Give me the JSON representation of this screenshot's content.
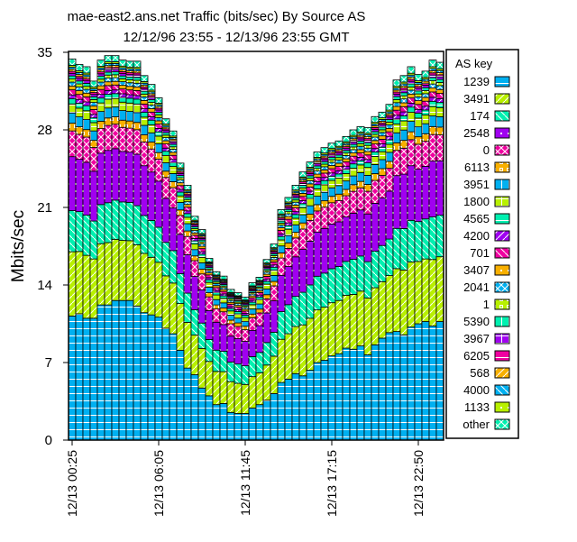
{
  "chart_data": {
    "type": "bar",
    "stacked": true,
    "title": "mae-east2.ans.net Traffic (bits/sec) By Source AS",
    "subtitle": "12/12/96 23:55 - 12/13/96 23:55 GMT",
    "xlabel": "",
    "ylabel": "Mbits/sec",
    "ylim": [
      0,
      35
    ],
    "yticks": [
      "0",
      "7",
      "14",
      "21",
      "28",
      "35"
    ],
    "xtick_labels": [
      {
        "bar": 0,
        "label": "12/13 00:25"
      },
      {
        "bar": 12,
        "label": "12/13 06:05"
      },
      {
        "bar": 24,
        "label": "12/13 11:45"
      },
      {
        "bar": 36,
        "label": "12/13 17:15"
      },
      {
        "bar": 48,
        "label": "12/13 22:50"
      }
    ],
    "legend_title": "AS key",
    "legend_position": "right",
    "totals": [
      34.4,
      33.9,
      33.7,
      32.4,
      34.3,
      34.7,
      34.7,
      34.3,
      34.2,
      34.2,
      32.9,
      32.1,
      30.9,
      29,
      27.9,
      25,
      23,
      20.2,
      19,
      16.4,
      15.2,
      14.8,
      13.6,
      13.3,
      12.9,
      14.2,
      14.7,
      16.3,
      17.7,
      20.8,
      21.9,
      23,
      24.2,
      25.1,
      26,
      26.4,
      26.8,
      27,
      27.4,
      28,
      28.3,
      28.2,
      29.2,
      29.6,
      30.3,
      32.5,
      32.9,
      33.7,
      33,
      33.3,
      34.3,
      34.1
    ],
    "series": [
      {
        "name": "1239",
        "color": "#00b0f0",
        "pattern": "hlines",
        "values": [
          11.2,
          11.4,
          11,
          11,
          12.2,
          12.2,
          12.6,
          12.6,
          12.6,
          12.1,
          11.5,
          11.3,
          11.1,
          10.1,
          9.6,
          8.1,
          6.5,
          5.9,
          4.7,
          4,
          3.2,
          3.3,
          2.5,
          2.4,
          2.4,
          2.9,
          3.2,
          3.6,
          4.2,
          5.2,
          5.5,
          6,
          5.8,
          6.3,
          7,
          7.2,
          7.6,
          7.8,
          8.3,
          8.2,
          8.5,
          7.7,
          8.6,
          9.2,
          9.7,
          9.8,
          9.5,
          10.2,
          10.5,
          10.7,
          10.3,
          10.7
        ]
      },
      {
        "name": "3491",
        "color": "#b8f000",
        "pattern": "diag-up",
        "share": 0.25
      },
      {
        "name": "174",
        "color": "#00f0b0",
        "pattern": "diag-down",
        "share": 0.16
      },
      {
        "name": "2548",
        "color": "#a000f0",
        "pattern": "dots",
        "share": 0.21
      },
      {
        "name": "0",
        "color": "#f000a0",
        "pattern": "cross",
        "share": 0.1
      },
      {
        "name": "6113",
        "color": "#f8b000",
        "pattern": "squares",
        "share": 0.03
      },
      {
        "name": "3951",
        "color": "#00b0f0",
        "pattern": "vlines",
        "share": 0.04
      },
      {
        "name": "1800",
        "color": "#b8f000",
        "pattern": "grid",
        "share": 0.035
      },
      {
        "name": "4565",
        "color": "#00f0b0",
        "pattern": "hlines",
        "share": 0.02
      },
      {
        "name": "4200",
        "color": "#a000f0",
        "pattern": "diag-up",
        "share": 0.015
      },
      {
        "name": "701",
        "color": "#f000a0",
        "pattern": "diag-down",
        "share": 0.02
      },
      {
        "name": "3407",
        "color": "#f8b000",
        "pattern": "dots",
        "share": 0.015
      },
      {
        "name": "2041",
        "color": "#00b0f0",
        "pattern": "cross",
        "share": 0.015
      },
      {
        "name": "1",
        "color": "#b8f000",
        "pattern": "squares",
        "share": 0.012
      },
      {
        "name": "5390",
        "color": "#00f0b0",
        "pattern": "vlines",
        "share": 0.012
      },
      {
        "name": "3967",
        "color": "#a000f0",
        "pattern": "grid",
        "share": 0.01
      },
      {
        "name": "6205",
        "color": "#f000a0",
        "pattern": "hlines",
        "share": 0.008
      },
      {
        "name": "568",
        "color": "#f8b000",
        "pattern": "diag-up",
        "share": 0.008
      },
      {
        "name": "4000",
        "color": "#00b0f0",
        "pattern": "diag-down",
        "share": 0.008
      },
      {
        "name": "1133",
        "color": "#b8f000",
        "pattern": "dots",
        "share": 0.007
      },
      {
        "name": "other",
        "color": "#00f0b0",
        "pattern": "cross",
        "share": 0.025
      }
    ]
  }
}
